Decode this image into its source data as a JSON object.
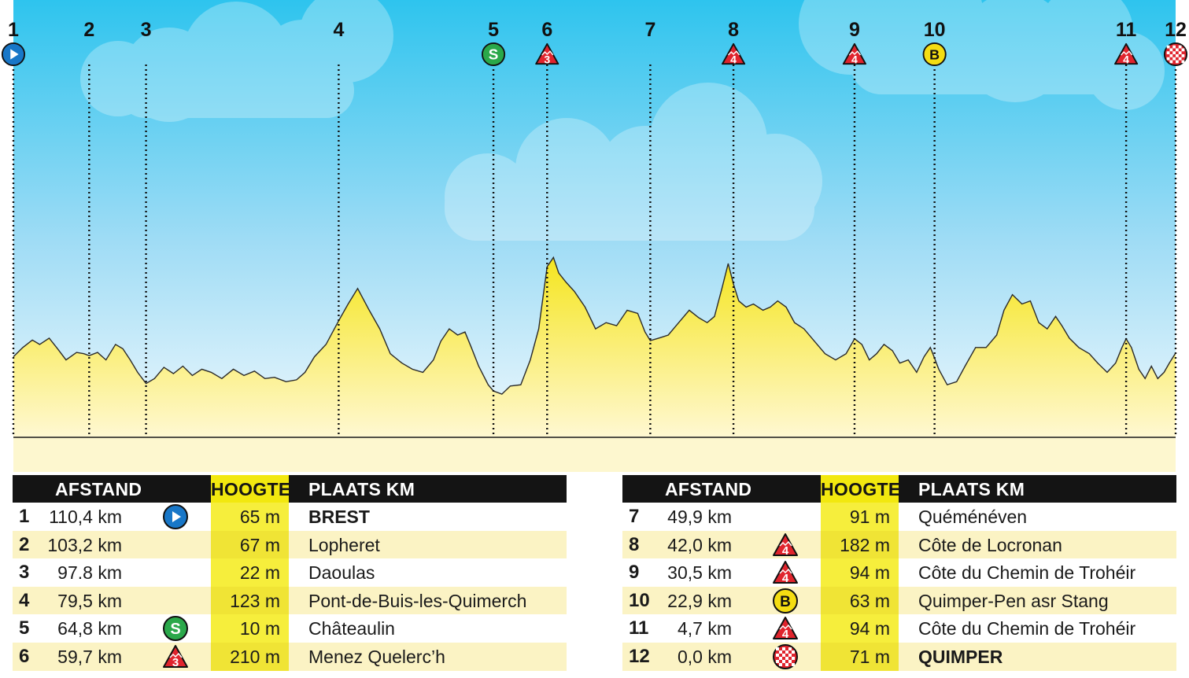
{
  "chart_data": {
    "type": "area",
    "title": "",
    "xlabel": "",
    "ylabel": "",
    "markers": [
      {
        "num": "1",
        "icon": "start",
        "km_to_go": 110.4,
        "elevation": 65
      },
      {
        "num": "2",
        "icon": "",
        "km_to_go": 103.2,
        "elevation": 67
      },
      {
        "num": "3",
        "icon": "",
        "km_to_go": 97.8,
        "elevation": 22
      },
      {
        "num": "4",
        "icon": "",
        "km_to_go": 79.5,
        "elevation": 123
      },
      {
        "num": "5",
        "icon": "sprint",
        "km_to_go": 64.8,
        "elevation": 10
      },
      {
        "num": "6",
        "icon": "cat3",
        "km_to_go": 59.7,
        "elevation": 210
      },
      {
        "num": "7",
        "icon": "",
        "km_to_go": 49.9,
        "elevation": 91
      },
      {
        "num": "8",
        "icon": "cat4",
        "km_to_go": 42.0,
        "elevation": 182
      },
      {
        "num": "9",
        "icon": "cat4",
        "km_to_go": 30.5,
        "elevation": 94
      },
      {
        "num": "10",
        "icon": "bonus",
        "km_to_go": 22.9,
        "elevation": 63
      },
      {
        "num": "11",
        "icon": "cat4",
        "km_to_go": 4.7,
        "elevation": 94
      },
      {
        "num": "12",
        "icon": "finish",
        "km_to_go": 0.0,
        "elevation": 71
      }
    ],
    "profile": [
      [
        110.4,
        65
      ],
      [
        109.5,
        80
      ],
      [
        108.6,
        92
      ],
      [
        107.9,
        85
      ],
      [
        107.0,
        95
      ],
      [
        106.2,
        78
      ],
      [
        105.4,
        60
      ],
      [
        104.4,
        72
      ],
      [
        103.7,
        70
      ],
      [
        103.2,
        67
      ],
      [
        102.4,
        72
      ],
      [
        101.6,
        60
      ],
      [
        100.7,
        85
      ],
      [
        100.0,
        78
      ],
      [
        99.3,
        60
      ],
      [
        98.6,
        40
      ],
      [
        97.8,
        22
      ],
      [
        97.0,
        30
      ],
      [
        96.1,
        48
      ],
      [
        95.2,
        38
      ],
      [
        94.3,
        50
      ],
      [
        93.4,
        35
      ],
      [
        92.5,
        45
      ],
      [
        91.6,
        40
      ],
      [
        90.6,
        30
      ],
      [
        89.5,
        45
      ],
      [
        88.5,
        35
      ],
      [
        87.5,
        42
      ],
      [
        86.5,
        30
      ],
      [
        85.6,
        32
      ],
      [
        84.5,
        25
      ],
      [
        83.5,
        28
      ],
      [
        82.7,
        40
      ],
      [
        81.8,
        65
      ],
      [
        80.7,
        85
      ],
      [
        79.5,
        123
      ],
      [
        78.6,
        150
      ],
      [
        77.7,
        175
      ],
      [
        76.6,
        140
      ],
      [
        75.6,
        110
      ],
      [
        74.6,
        70
      ],
      [
        73.5,
        55
      ],
      [
        72.5,
        45
      ],
      [
        71.5,
        40
      ],
      [
        70.5,
        60
      ],
      [
        69.8,
        90
      ],
      [
        69.0,
        110
      ],
      [
        68.2,
        100
      ],
      [
        67.5,
        105
      ],
      [
        66.9,
        80
      ],
      [
        66.2,
        50
      ],
      [
        65.3,
        20
      ],
      [
        64.8,
        10
      ],
      [
        64.0,
        5
      ],
      [
        63.2,
        18
      ],
      [
        62.2,
        20
      ],
      [
        61.3,
        60
      ],
      [
        60.5,
        110
      ],
      [
        59.7,
        210
      ],
      [
        59.1,
        225
      ],
      [
        58.6,
        200
      ],
      [
        57.9,
        185
      ],
      [
        57.1,
        170
      ],
      [
        56.1,
        145
      ],
      [
        55.1,
        110
      ],
      [
        54.1,
        120
      ],
      [
        53.1,
        115
      ],
      [
        52.1,
        140
      ],
      [
        51.1,
        135
      ],
      [
        50.4,
        105
      ],
      [
        49.9,
        91
      ],
      [
        49.1,
        95
      ],
      [
        48.2,
        100
      ],
      [
        47.2,
        120
      ],
      [
        46.2,
        140
      ],
      [
        45.3,
        128
      ],
      [
        44.5,
        120
      ],
      [
        43.8,
        130
      ],
      [
        43.1,
        175
      ],
      [
        42.5,
        215
      ],
      [
        42.0,
        182
      ],
      [
        41.5,
        155
      ],
      [
        40.8,
        145
      ],
      [
        40.1,
        150
      ],
      [
        39.2,
        140
      ],
      [
        38.5,
        145
      ],
      [
        37.8,
        155
      ],
      [
        37.0,
        145
      ],
      [
        36.2,
        120
      ],
      [
        35.3,
        110
      ],
      [
        34.3,
        90
      ],
      [
        33.3,
        70
      ],
      [
        32.3,
        60
      ],
      [
        31.3,
        70
      ],
      [
        30.5,
        94
      ],
      [
        29.8,
        85
      ],
      [
        29.1,
        60
      ],
      [
        28.4,
        70
      ],
      [
        27.7,
        85
      ],
      [
        26.9,
        75
      ],
      [
        26.2,
        55
      ],
      [
        25.4,
        60
      ],
      [
        24.6,
        40
      ],
      [
        23.9,
        65
      ],
      [
        23.3,
        80
      ],
      [
        22.9,
        63
      ],
      [
        22.5,
        45
      ],
      [
        21.7,
        20
      ],
      [
        20.8,
        25
      ],
      [
        20.0,
        50
      ],
      [
        19.0,
        80
      ],
      [
        18.0,
        80
      ],
      [
        17.0,
        100
      ],
      [
        16.3,
        140
      ],
      [
        15.5,
        165
      ],
      [
        14.6,
        150
      ],
      [
        13.8,
        155
      ],
      [
        13.0,
        120
      ],
      [
        12.2,
        110
      ],
      [
        11.4,
        130
      ],
      [
        10.8,
        115
      ],
      [
        10.1,
        95
      ],
      [
        9.2,
        80
      ],
      [
        8.2,
        70
      ],
      [
        7.4,
        55
      ],
      [
        6.5,
        40
      ],
      [
        5.7,
        55
      ],
      [
        5.1,
        80
      ],
      [
        4.7,
        94
      ],
      [
        4.2,
        80
      ],
      [
        3.5,
        45
      ],
      [
        2.9,
        30
      ],
      [
        2.3,
        50
      ],
      [
        1.7,
        30
      ],
      [
        1.1,
        40
      ],
      [
        0.6,
        55
      ],
      [
        0.0,
        71
      ]
    ],
    "columns": [
      "AFSTAND",
      "HOOGTE",
      "PLAATS KM"
    ],
    "rows": [
      {
        "num": "1",
        "afstand": "110,4 km",
        "icon": "start",
        "hoogte": "65 m",
        "plaats": "BREST",
        "bold": true
      },
      {
        "num": "2",
        "afstand": "103,2 km",
        "icon": "",
        "hoogte": "67 m",
        "plaats": "Lopheret",
        "bold": false
      },
      {
        "num": "3",
        "afstand": "97.8 km",
        "icon": "",
        "hoogte": "22 m",
        "plaats": "Daoulas",
        "bold": false
      },
      {
        "num": "4",
        "afstand": "79,5 km",
        "icon": "",
        "hoogte": "123 m",
        "plaats": "Pont-de-Buis-les-Quimerch",
        "bold": false
      },
      {
        "num": "5",
        "afstand": "64,8 km",
        "icon": "sprint",
        "hoogte": "10 m",
        "plaats": "Châteaulin",
        "bold": false
      },
      {
        "num": "6",
        "afstand": "59,7 km",
        "icon": "cat3",
        "hoogte": "210 m",
        "plaats": "Menez Quelerc’h",
        "bold": false
      },
      {
        "num": "7",
        "afstand": "49,9 km",
        "icon": "",
        "hoogte": "91 m",
        "plaats": "Quéménéven",
        "bold": false
      },
      {
        "num": "8",
        "afstand": "42,0 km",
        "icon": "cat4",
        "hoogte": "182 m",
        "plaats": "Côte de Locronan",
        "bold": false
      },
      {
        "num": "9",
        "afstand": "30,5 km",
        "icon": "cat4",
        "hoogte": "94 m",
        "plaats": "Côte du Chemin de Trohéir",
        "bold": false
      },
      {
        "num": "10",
        "afstand": "22,9 km",
        "icon": "bonus",
        "hoogte": "63 m",
        "plaats": "Quimper-Pen asr Stang",
        "bold": false
      },
      {
        "num": "11",
        "afstand": "4,7 km",
        "icon": "cat4",
        "hoogte": "94 m",
        "plaats": "Côte du Chemin de Trohéir",
        "bold": false
      },
      {
        "num": "12",
        "afstand": "0,0 km",
        "icon": "finish",
        "hoogte": "71 m",
        "plaats": "QUIMPER",
        "bold": true
      }
    ]
  },
  "icon_labels": {
    "sprint": "S",
    "cat3": "3",
    "cat4": "4",
    "bonus": "B"
  },
  "colors": {
    "sky_top": "#2ec4ee",
    "sky_bottom": "#e6f5fc",
    "terrain_top": "#f5e51e",
    "terrain_bottom": "#fff6c9",
    "header_bg": "#141414",
    "hoogte_accent": "#f2e80f",
    "row_alt": "#fbf3c4",
    "start": "#1877c8",
    "sprint": "#2aa84a",
    "climb": "#e0242d",
    "bonus": "#f4dd12",
    "finish": "#e0242d"
  }
}
